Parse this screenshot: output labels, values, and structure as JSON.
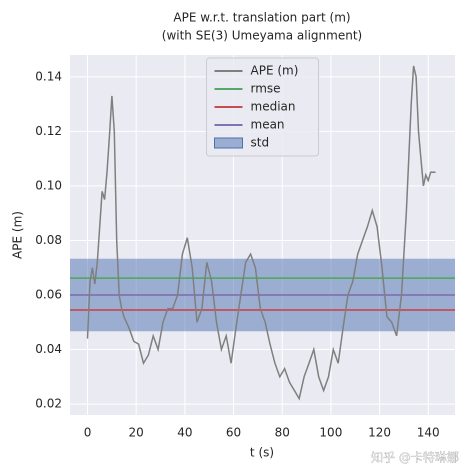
{
  "chart_data": {
    "type": "line",
    "title": "APE w.r.t. translation part (m)",
    "subtitle": "(with SE(3) Umeyama alignment)",
    "x_label": "t (s)",
    "y_label": "APE (m)",
    "watermark": "知乎 @卡特琳娜",
    "xlim": [
      -7.2,
      151
    ],
    "ylim": [
      0.016,
      0.148
    ],
    "xticks": [
      0,
      20,
      40,
      60,
      80,
      100,
      120,
      140
    ],
    "yticks": [
      {
        "value": 0.02,
        "label": "0.02"
      },
      {
        "value": 0.04,
        "label": "0.04"
      },
      {
        "value": 0.06,
        "label": "0.06"
      },
      {
        "value": 0.08,
        "label": "0.08"
      },
      {
        "value": 0.1,
        "label": "0.10"
      },
      {
        "value": 0.12,
        "label": "0.12"
      },
      {
        "value": 0.14,
        "label": "0.14"
      }
    ],
    "grid": true,
    "legend": "upper center",
    "series": [
      {
        "name": "APE (m)",
        "color": "#7f7f7f",
        "x": [
          0,
          1,
          2,
          3,
          4,
          5,
          6,
          7,
          8,
          9,
          10,
          11,
          12,
          13,
          14,
          15,
          17,
          19,
          21,
          23,
          25,
          27,
          29,
          31,
          33,
          35,
          37,
          39,
          41,
          43,
          45,
          47,
          49,
          51,
          53,
          55,
          57,
          59,
          61,
          63,
          65,
          67,
          69,
          71,
          73,
          75,
          77,
          79,
          81,
          83,
          85,
          87,
          89,
          91,
          93,
          95,
          97,
          99,
          101,
          103,
          105,
          107,
          109,
          111,
          113,
          115,
          117,
          119,
          121,
          123,
          125,
          127,
          129,
          131,
          133,
          134,
          135,
          136,
          137,
          138,
          139,
          140,
          141,
          143
        ],
        "values": [
          0.044,
          0.065,
          0.07,
          0.064,
          0.072,
          0.085,
          0.098,
          0.095,
          0.105,
          0.118,
          0.133,
          0.12,
          0.08,
          0.06,
          0.055,
          0.052,
          0.048,
          0.043,
          0.042,
          0.035,
          0.038,
          0.045,
          0.04,
          0.05,
          0.055,
          0.055,
          0.06,
          0.075,
          0.081,
          0.07,
          0.05,
          0.055,
          0.072,
          0.065,
          0.05,
          0.04,
          0.045,
          0.035,
          0.048,
          0.06,
          0.072,
          0.075,
          0.07,
          0.055,
          0.05,
          0.042,
          0.035,
          0.03,
          0.033,
          0.028,
          0.025,
          0.022,
          0.03,
          0.035,
          0.04,
          0.03,
          0.025,
          0.03,
          0.04,
          0.035,
          0.048,
          0.06,
          0.065,
          0.075,
          0.08,
          0.085,
          0.091,
          0.085,
          0.07,
          0.052,
          0.05,
          0.045,
          0.06,
          0.09,
          0.13,
          0.144,
          0.14,
          0.12,
          0.11,
          0.1,
          0.104,
          0.102,
          0.105,
          0.105
        ]
      }
    ],
    "reference_lines": [
      {
        "name": "rmse",
        "color": "#55a868",
        "value": 0.0662
      },
      {
        "name": "median",
        "color": "#c44e52",
        "value": 0.0545
      },
      {
        "name": "mean",
        "color": "#8172b2",
        "value": 0.06
      }
    ],
    "band": {
      "name": "std",
      "color": "#4c72b0",
      "range": [
        0.0467,
        0.0733
      ]
    }
  }
}
